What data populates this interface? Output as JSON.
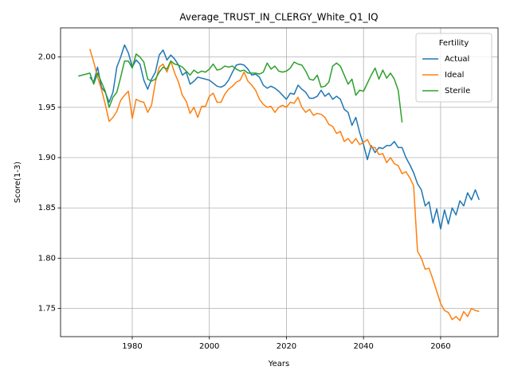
{
  "chart_data": {
    "type": "line",
    "title": "Average_TRUST_IN_CLERGY_White_Q1_IQ",
    "xlabel": "Years",
    "ylabel": "Score(1-3)",
    "x": [
      1966,
      1967,
      1968,
      1969,
      1970,
      1971,
      1972,
      1973,
      1974,
      1975,
      1976,
      1977,
      1978,
      1979,
      1980,
      1981,
      1982,
      1983,
      1984,
      1985,
      1986,
      1987,
      1988,
      1989,
      1990,
      1991,
      1992,
      1993,
      1994,
      1995,
      1996,
      1997,
      1998,
      1999,
      2000,
      2001,
      2002,
      2003,
      2004,
      2005,
      2006,
      2007,
      2008,
      2009,
      2010,
      2011,
      2012,
      2013,
      2014,
      2015,
      2016,
      2017,
      2018,
      2019,
      2020,
      2021,
      2022,
      2023,
      2024,
      2025,
      2026,
      2027,
      2028,
      2029,
      2030,
      2031,
      2032,
      2033,
      2034,
      2035,
      2036,
      2037,
      2038,
      2039,
      2040,
      2041,
      2042,
      2043,
      2044,
      2045,
      2046,
      2047,
      2048,
      2049,
      2050,
      2051,
      2052,
      2053,
      2054,
      2055,
      2056,
      2057,
      2058,
      2059,
      2060,
      2061,
      2062,
      2063,
      2064,
      2065,
      2066,
      2067,
      2068,
      2069,
      2070
    ],
    "series": [
      {
        "name": "Actual",
        "color": "#1f77b4",
        "values": [
          null,
          null,
          null,
          1.98,
          1.975,
          1.99,
          1.97,
          1.965,
          1.955,
          1.965,
          1.99,
          2.0,
          2.012,
          2.004,
          1.99,
          1.997,
          1.993,
          1.977,
          1.968,
          1.978,
          1.985,
          2.002,
          2.007,
          1.997,
          2.002,
          1.998,
          1.992,
          1.982,
          1.985,
          1.973,
          1.976,
          1.98,
          1.979,
          1.978,
          1.977,
          1.974,
          1.971,
          1.97,
          1.972,
          1.977,
          1.985,
          1.992,
          1.993,
          1.992,
          1.988,
          1.982,
          1.983,
          1.98,
          1.972,
          1.969,
          1.971,
          1.969,
          1.966,
          1.962,
          1.958,
          1.964,
          1.963,
          1.972,
          1.968,
          1.965,
          1.959,
          1.959,
          1.961,
          1.967,
          1.961,
          1.964,
          1.958,
          1.961,
          1.958,
          1.948,
          1.945,
          1.932,
          1.94,
          1.925,
          1.913,
          1.898,
          1.912,
          1.905,
          1.91,
          1.909,
          1.912,
          1.912,
          1.916,
          1.91,
          1.91,
          1.9,
          1.893,
          1.885,
          1.874,
          1.868,
          1.852,
          1.856,
          1.835,
          1.849,
          1.829,
          1.848,
          1.834,
          1.85,
          1.843,
          1.857,
          1.852,
          1.865,
          1.858,
          1.868,
          1.858
        ]
      },
      {
        "name": "Ideal",
        "color": "#ff7f0e",
        "values": [
          null,
          null,
          null,
          2.008,
          1.995,
          1.98,
          1.968,
          1.953,
          1.936,
          1.94,
          1.946,
          1.957,
          1.962,
          1.966,
          1.939,
          1.958,
          1.956,
          1.955,
          1.945,
          1.952,
          1.975,
          1.99,
          1.993,
          1.985,
          1.996,
          1.984,
          1.975,
          1.962,
          1.956,
          1.944,
          1.95,
          1.94,
          1.951,
          1.951,
          1.961,
          1.964,
          1.955,
          1.955,
          1.963,
          1.968,
          1.971,
          1.975,
          1.977,
          1.985,
          1.976,
          1.972,
          1.967,
          1.958,
          1.953,
          1.95,
          1.951,
          1.945,
          1.95,
          1.952,
          1.95,
          1.955,
          1.954,
          1.96,
          1.95,
          1.945,
          1.948,
          1.942,
          1.944,
          1.943,
          1.94,
          1.933,
          1.931,
          1.924,
          1.926,
          1.916,
          1.919,
          1.914,
          1.919,
          1.913,
          1.915,
          1.918,
          1.91,
          1.91,
          1.903,
          1.904,
          1.895,
          1.9,
          1.894,
          1.892,
          1.884,
          1.886,
          1.88,
          1.872,
          1.807,
          1.8,
          1.789,
          1.79,
          1.779,
          1.767,
          1.755,
          1.748,
          1.746,
          1.739,
          1.742,
          1.738,
          1.747,
          1.742,
          1.75,
          1.748,
          1.747
        ]
      },
      {
        "name": "Sterile",
        "color": "#2ca02c",
        "values": [
          1.981,
          1.982,
          1.983,
          1.984,
          1.973,
          1.984,
          1.975,
          1.966,
          1.95,
          1.96,
          1.965,
          1.98,
          1.996,
          1.996,
          1.989,
          2.003,
          2.0,
          1.995,
          1.978,
          1.976,
          1.978,
          1.985,
          1.99,
          1.988,
          1.996,
          1.993,
          1.992,
          1.99,
          1.986,
          1.982,
          1.987,
          1.984,
          1.986,
          1.985,
          1.988,
          1.993,
          1.987,
          1.988,
          1.991,
          1.99,
          1.991,
          1.988,
          1.986,
          1.987,
          1.984,
          1.984,
          1.984,
          1.983,
          1.985,
          1.994,
          1.988,
          1.991,
          1.986,
          1.985,
          1.986,
          1.989,
          1.995,
          1.993,
          1.992,
          1.986,
          1.978,
          1.977,
          1.982,
          1.97,
          1.971,
          1.975,
          1.991,
          1.994,
          1.991,
          1.982,
          1.973,
          1.978,
          1.962,
          1.967,
          1.966,
          1.974,
          1.982,
          1.989,
          1.978,
          1.987,
          1.979,
          1.984,
          1.978,
          1.967,
          1.935,
          null,
          null,
          null,
          null,
          null,
          null,
          null,
          null,
          null,
          null,
          null,
          null,
          null,
          null,
          null,
          null,
          null,
          null,
          null,
          null
        ]
      }
    ],
    "xlim": [
      1961.4,
      2074.9
    ],
    "ylim": [
      1.722,
      2.029
    ],
    "xticks": [
      1980,
      2000,
      2020,
      2040,
      2060
    ],
    "yticks": [
      1.75,
      {
        "value": 1.8,
        "label": "1.80"
      },
      1.85,
      {
        "value": 1.9,
        "label": "1.90"
      },
      1.95,
      {
        "value": 2.0,
        "label": "2.00"
      }
    ],
    "grid": true,
    "legend_title": "Fertility",
    "legend": "upper right"
  }
}
